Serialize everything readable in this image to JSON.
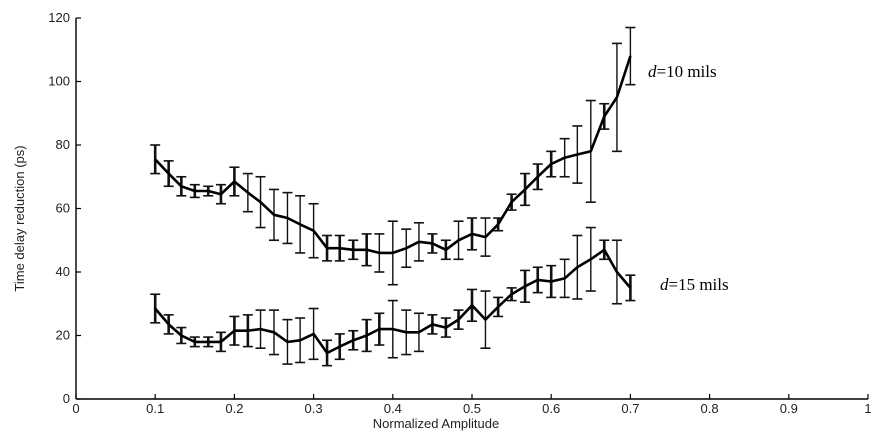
{
  "chart_data": {
    "type": "line",
    "title": "",
    "xlabel": "Normalized Amplitude",
    "ylabel": "Time delay reduction (ps)",
    "xlim": [
      0,
      1
    ],
    "ylim": [
      0,
      120
    ],
    "x_ticks": [
      "0",
      "0.1",
      "0.2",
      "0.3",
      "0.4",
      "0.5",
      "0.6",
      "0.7",
      "0.8",
      "0.9",
      "1"
    ],
    "y_ticks": [
      "0",
      "20",
      "40",
      "60",
      "80",
      "100",
      "120"
    ],
    "x_tick_values": [
      0,
      0.1,
      0.2,
      0.3,
      0.4,
      0.5,
      0.6,
      0.7,
      0.8,
      0.9,
      1
    ],
    "y_tick_values": [
      0,
      20,
      40,
      60,
      80,
      100,
      120
    ],
    "grid": false,
    "legend": "none",
    "series": [
      {
        "name": "d=10 mils",
        "label_italic": "d",
        "label_rest": "=10 mils",
        "x": [
          0.1,
          0.117,
          0.133,
          0.15,
          0.167,
          0.183,
          0.2,
          0.217,
          0.233,
          0.25,
          0.267,
          0.283,
          0.3,
          0.317,
          0.333,
          0.35,
          0.367,
          0.383,
          0.4,
          0.417,
          0.433,
          0.45,
          0.467,
          0.483,
          0.5,
          0.517,
          0.533,
          0.55,
          0.567,
          0.583,
          0.6,
          0.617,
          0.633,
          0.65,
          0.667,
          0.683,
          0.7
        ],
        "y": [
          75.5,
          71,
          67,
          65.5,
          65.5,
          64.5,
          68.5,
          65,
          62,
          58,
          57,
          55,
          53,
          47.5,
          47.5,
          47,
          47,
          46,
          46,
          47.5,
          49.5,
          49,
          47,
          50,
          52,
          51,
          55,
          62,
          66,
          70,
          74,
          76,
          77,
          78,
          89,
          95,
          108
        ],
        "err": [
          4.5,
          4,
          3,
          2,
          1.5,
          3,
          4.5,
          6,
          8,
          8,
          8,
          9,
          8.5,
          4,
          4,
          3,
          5,
          6,
          10,
          6,
          6,
          3,
          3,
          6,
          5,
          6,
          2,
          2.5,
          5,
          4,
          4,
          6,
          9,
          16,
          4,
          17,
          9
        ]
      },
      {
        "name": "d=15 mils",
        "label_italic": "d",
        "label_rest": "=15 mils",
        "x": [
          0.1,
          0.117,
          0.133,
          0.15,
          0.167,
          0.183,
          0.2,
          0.217,
          0.233,
          0.25,
          0.267,
          0.283,
          0.3,
          0.317,
          0.333,
          0.35,
          0.367,
          0.383,
          0.4,
          0.417,
          0.433,
          0.45,
          0.467,
          0.483,
          0.5,
          0.517,
          0.533,
          0.55,
          0.567,
          0.583,
          0.6,
          0.617,
          0.633,
          0.65,
          0.667,
          0.683,
          0.7
        ],
        "y": [
          28.5,
          23.5,
          20,
          18,
          18,
          18,
          21.5,
          21.5,
          22,
          21,
          18,
          18.5,
          20.5,
          14.5,
          16.5,
          18.5,
          20,
          22,
          22,
          21,
          21,
          23.5,
          22.5,
          25,
          29.5,
          25,
          29,
          33,
          35.5,
          37.5,
          37,
          38,
          41.5,
          44,
          47,
          40,
          35
        ],
        "err": [
          4.5,
          3,
          2.5,
          1.5,
          1.5,
          3,
          4.5,
          5,
          6,
          7,
          7,
          7,
          8,
          4,
          4,
          3,
          5,
          5,
          9,
          7,
          6,
          3,
          3,
          3,
          5,
          9,
          3,
          2,
          5,
          4,
          5,
          6,
          10,
          10,
          3,
          10,
          4
        ]
      }
    ]
  }
}
